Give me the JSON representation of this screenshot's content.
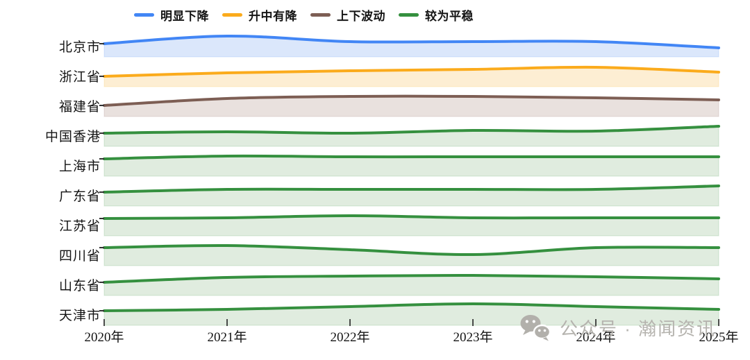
{
  "legend": {
    "items": [
      {
        "label": "明显下降",
        "color": "#4286f5"
      },
      {
        "label": "升中有降",
        "color": "#fbab1c"
      },
      {
        "label": "上下波动",
        "color": "#7d5e54"
      },
      {
        "label": "较为平稳",
        "color": "#35903f"
      }
    ]
  },
  "chart_data": {
    "type": "area",
    "subtype": "ridgeline-small-multiples",
    "x_labels": [
      "2020年",
      "2021年",
      "2022年",
      "2023年",
      "2024年",
      "2025年"
    ],
    "value_unit": "relative level above each row baseline (unlabeled axis, 0-43 scale estimated from pixels)",
    "grid": false,
    "legend_position": "top",
    "series": [
      {
        "name": "北京市",
        "trend": "明显下降",
        "color": "#4286f5",
        "fill": "#dbe7fb",
        "values": [
          19,
          30,
          22,
          22,
          22,
          13
        ]
      },
      {
        "name": "浙江省",
        "trend": "升中有降",
        "color": "#fbab1c",
        "fill": "#fdeed3",
        "values": [
          15,
          20,
          23,
          25,
          28,
          21
        ]
      },
      {
        "name": "福建省",
        "trend": "上下波动",
        "color": "#7d5e54",
        "fill": "#e9e1de",
        "values": [
          16,
          26,
          29,
          29,
          27,
          24
        ]
      },
      {
        "name": "中国香港",
        "trend": "较为平稳",
        "color": "#35903f",
        "fill": "#e0ecdf",
        "values": [
          19,
          21,
          19,
          23,
          22,
          29
        ]
      },
      {
        "name": "上海市",
        "trend": "较为平稳",
        "color": "#35903f",
        "fill": "#e0ecdf",
        "values": [
          25,
          29,
          28,
          28,
          28,
          28
        ]
      },
      {
        "name": "广东省",
        "trend": "较为平稳",
        "color": "#35903f",
        "fill": "#e0ecdf",
        "values": [
          20,
          24,
          24,
          24,
          24,
          29
        ]
      },
      {
        "name": "江苏省",
        "trend": "较为平稳",
        "color": "#35903f",
        "fill": "#e0ecdf",
        "values": [
          25,
          26,
          29,
          26,
          26,
          26
        ]
      },
      {
        "name": "四川省",
        "trend": "较为平稳",
        "color": "#35903f",
        "fill": "#e0ecdf",
        "values": [
          26,
          29,
          23,
          16,
          26,
          26
        ]
      },
      {
        "name": "山东省",
        "trend": "较为平稳",
        "color": "#35903f",
        "fill": "#e0ecdf",
        "values": [
          19,
          26,
          28,
          29,
          27,
          24
        ]
      },
      {
        "name": "天津市",
        "trend": "较为平稳",
        "color": "#35903f",
        "fill": "#e0ecdf",
        "values": [
          21,
          23,
          27,
          31,
          27,
          23
        ]
      }
    ],
    "axis": {
      "tick_color": "#222222",
      "label_color": "#141414"
    }
  },
  "watermark": {
    "text": "公众号 · 瀚闻资讯",
    "icon": "wechat-icon",
    "color": "#b5b3ae"
  }
}
